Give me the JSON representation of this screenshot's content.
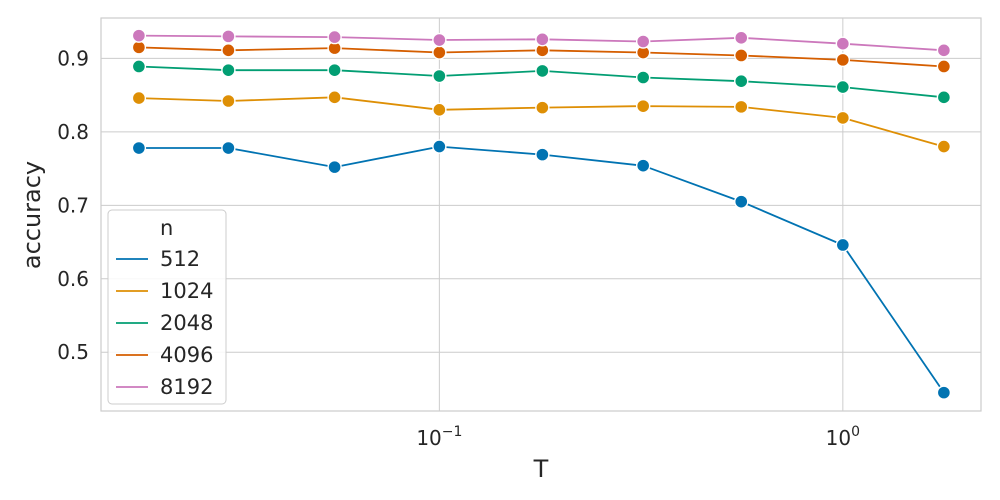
{
  "chart_data": {
    "type": "line",
    "xlabel": "T",
    "ylabel": "accuracy",
    "x_scale": "log",
    "x": [
      0.018,
      0.03,
      0.055,
      0.1,
      0.18,
      0.32,
      0.56,
      1.0,
      1.78
    ],
    "xlim": [
      0.0145,
      2.2
    ],
    "ylim": [
      0.42,
      0.955
    ],
    "y_ticks": [
      0.5,
      0.6,
      0.7,
      0.8,
      0.9
    ],
    "x_ticks": [
      {
        "value": 0.1,
        "label": "10",
        "exp": "−1"
      },
      {
        "value": 1.0,
        "label": "10",
        "exp": "0"
      }
    ],
    "grid": true,
    "legend": {
      "title": "n",
      "placement": "lower-left"
    },
    "series": [
      {
        "name": "512",
        "color": "#0173b2",
        "values": [
          0.778,
          0.778,
          0.752,
          0.78,
          0.769,
          0.754,
          0.705,
          0.646,
          0.445
        ]
      },
      {
        "name": "1024",
        "color": "#de8f05",
        "values": [
          0.846,
          0.842,
          0.847,
          0.83,
          0.833,
          0.835,
          0.834,
          0.819,
          0.78
        ]
      },
      {
        "name": "2048",
        "color": "#029e73",
        "values": [
          0.889,
          0.884,
          0.884,
          0.876,
          0.883,
          0.874,
          0.869,
          0.861,
          0.847
        ]
      },
      {
        "name": "4096",
        "color": "#d55e00",
        "values": [
          0.915,
          0.911,
          0.914,
          0.908,
          0.911,
          0.908,
          0.904,
          0.898,
          0.889
        ]
      },
      {
        "name": "8192",
        "color": "#cc78bc",
        "values": [
          0.931,
          0.93,
          0.929,
          0.925,
          0.926,
          0.923,
          0.928,
          0.92,
          0.911
        ]
      }
    ]
  }
}
